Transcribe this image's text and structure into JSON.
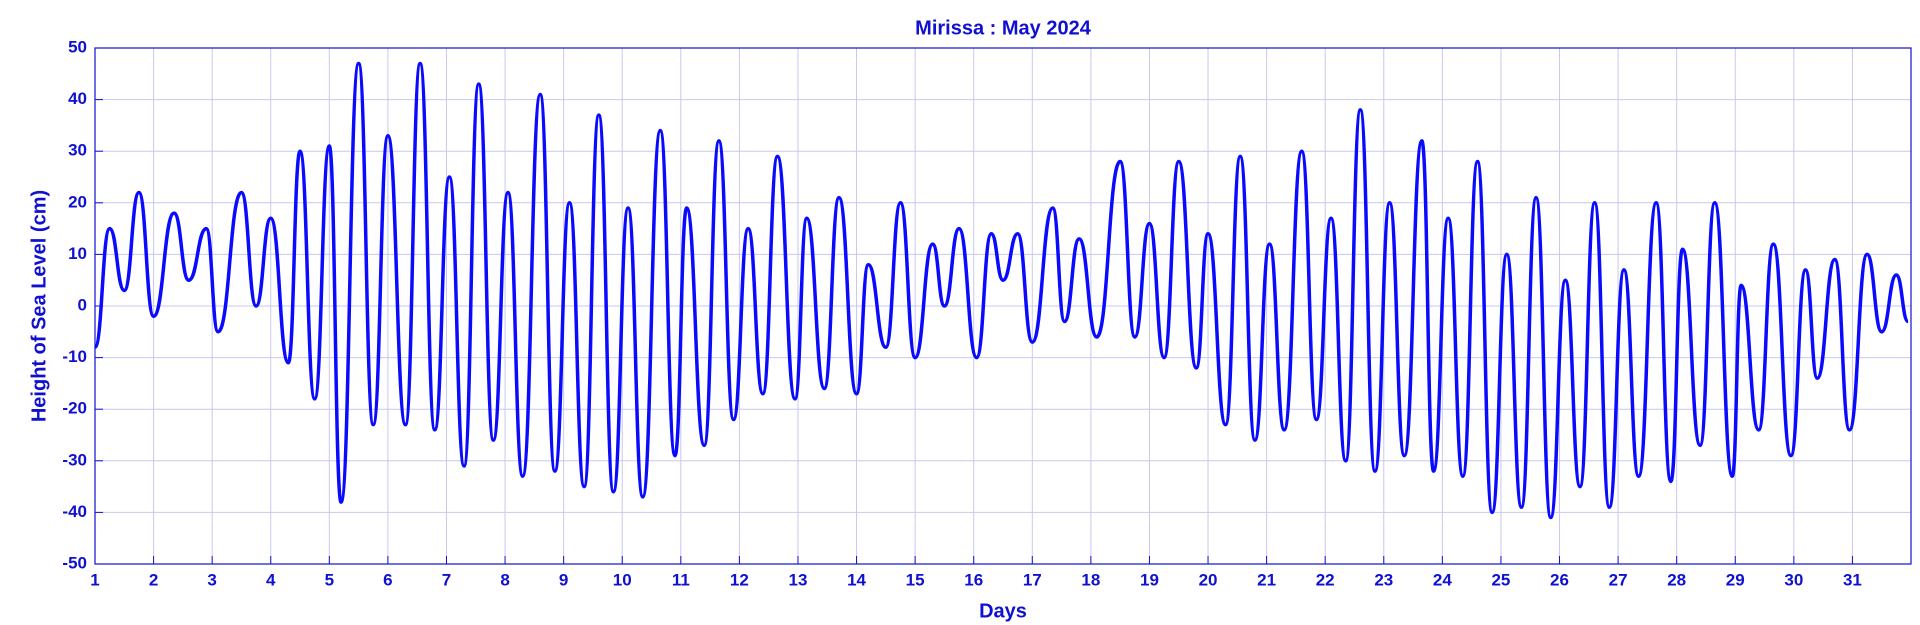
{
  "chart_data": {
    "type": "line",
    "title": "Mirissa : May 2024",
    "xlabel": "Days",
    "ylabel": "Height of Sea Level (cm)",
    "x": [
      1.0,
      1.25,
      1.5,
      1.75,
      2.0,
      2.35,
      2.6,
      2.9,
      3.1,
      3.5,
      3.75,
      4.0,
      4.3,
      4.5,
      4.75,
      5.0,
      5.2,
      5.5,
      5.75,
      6.0,
      6.3,
      6.55,
      6.8,
      7.05,
      7.3,
      7.55,
      7.8,
      8.05,
      8.3,
      8.6,
      8.85,
      9.1,
      9.35,
      9.6,
      9.85,
      10.1,
      10.35,
      10.65,
      10.9,
      11.1,
      11.4,
      11.65,
      11.9,
      12.15,
      12.4,
      12.65,
      12.95,
      13.15,
      13.45,
      13.7,
      14.0,
      14.2,
      14.5,
      14.75,
      15.0,
      15.3,
      15.5,
      15.75,
      16.05,
      16.3,
      16.5,
      16.75,
      17.0,
      17.35,
      17.55,
      17.8,
      18.1,
      18.5,
      18.75,
      19.0,
      19.25,
      19.5,
      19.8,
      20.0,
      20.3,
      20.55,
      20.8,
      21.05,
      21.3,
      21.6,
      21.85,
      22.1,
      22.35,
      22.6,
      22.85,
      23.1,
      23.35,
      23.65,
      23.85,
      24.1,
      24.35,
      24.6,
      24.85,
      25.1,
      25.35,
      25.6,
      25.85,
      26.1,
      26.35,
      26.6,
      26.85,
      27.1,
      27.35,
      27.65,
      27.9,
      28.1,
      28.4,
      28.65,
      28.95,
      29.1,
      29.4,
      29.65,
      29.95,
      30.2,
      30.4,
      30.7,
      30.95,
      31.25,
      31.5,
      31.75,
      31.95
    ],
    "series": [
      {
        "name": "Sea level",
        "color": "#0a0aff",
        "values": [
          -8,
          15,
          3,
          22,
          -2,
          18,
          5,
          15,
          -5,
          22,
          0,
          17,
          -11,
          30,
          -18,
          31,
          -38,
          47,
          -23,
          33,
          -23,
          47,
          -24,
          25,
          -31,
          43,
          -26,
          22,
          -33,
          41,
          -32,
          20,
          -35,
          37,
          -36,
          19,
          -37,
          34,
          -29,
          19,
          -27,
          32,
          -22,
          15,
          -17,
          29,
          -18,
          17,
          -16,
          21,
          -17,
          8,
          -8,
          20,
          -10,
          12,
          0,
          15,
          -10,
          14,
          5,
          14,
          -7,
          19,
          -3,
          13,
          -6,
          28,
          -6,
          16,
          -10,
          28,
          -12,
          14,
          -23,
          29,
          -26,
          12,
          -24,
          30,
          -22,
          17,
          -30,
          38,
          -32,
          20,
          -29,
          32,
          -32,
          17,
          -33,
          28,
          -40,
          10,
          -39,
          21,
          -41,
          5,
          -35,
          20,
          -39,
          7,
          -33,
          20,
          -34,
          11,
          -27,
          20,
          -33,
          4,
          -24,
          12,
          -29,
          7,
          -14,
          9,
          -24,
          10,
          -5,
          6,
          -3
        ]
      }
    ],
    "xlim": [
      1,
      32
    ],
    "xticks": [
      1,
      2,
      3,
      4,
      5,
      6,
      7,
      8,
      9,
      10,
      11,
      12,
      13,
      14,
      15,
      16,
      17,
      18,
      19,
      20,
      21,
      22,
      23,
      24,
      25,
      26,
      27,
      28,
      29,
      30,
      31
    ],
    "ylim": [
      -50,
      50
    ],
    "yticks": [
      -50,
      -40,
      -30,
      -20,
      -10,
      0,
      10,
      20,
      30,
      40,
      50
    ],
    "grid": true
  }
}
